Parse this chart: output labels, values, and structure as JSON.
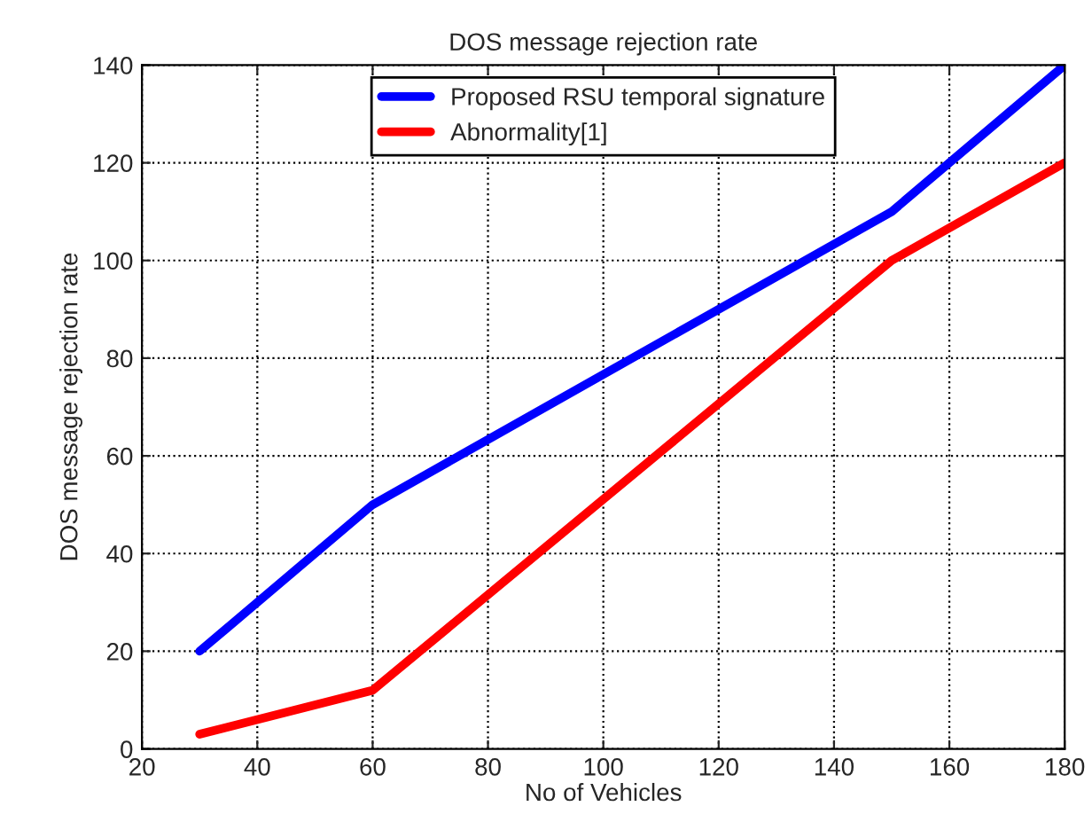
{
  "chart_data": {
    "type": "line",
    "title": "DOS message rejection rate",
    "xlabel": "No of Vehicles",
    "ylabel": "DOS message rejection rate",
    "x": [
      30,
      60,
      150,
      180
    ],
    "series": [
      {
        "name": "Proposed RSU temporal signature",
        "color": "#0000ff",
        "values": [
          20,
          50,
          110,
          140
        ]
      },
      {
        "name": "Abnormality[1]",
        "color": "#ff0000",
        "values": [
          3,
          12,
          100,
          120
        ]
      }
    ],
    "xlim": [
      20,
      180
    ],
    "xticks": [
      20,
      40,
      60,
      80,
      100,
      120,
      140,
      160,
      180
    ],
    "ylim": [
      0,
      140
    ],
    "yticks": [
      0,
      20,
      40,
      60,
      80,
      100,
      120,
      140
    ],
    "grid": true,
    "legend": "top",
    "line_style": "solid",
    "marker": "none"
  }
}
